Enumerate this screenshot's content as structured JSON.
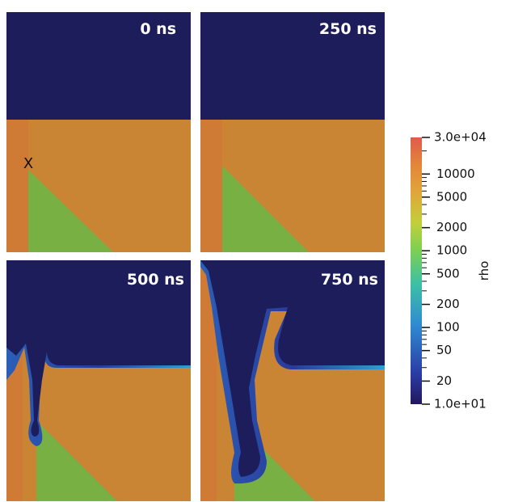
{
  "panels": [
    {
      "label": "0 ns",
      "marker": "X"
    },
    {
      "label": "250 ns"
    },
    {
      "label": "500 ns"
    },
    {
      "label": "750 ns"
    }
  ],
  "colorbar": {
    "title": "rho",
    "max": {
      "value": 30000,
      "label": "3.0e+04"
    },
    "min": {
      "value": 10,
      "label": "1.0e+01"
    },
    "ticks": [
      10000,
      5000,
      2000,
      1000,
      500,
      200,
      100,
      50,
      20
    ]
  }
}
